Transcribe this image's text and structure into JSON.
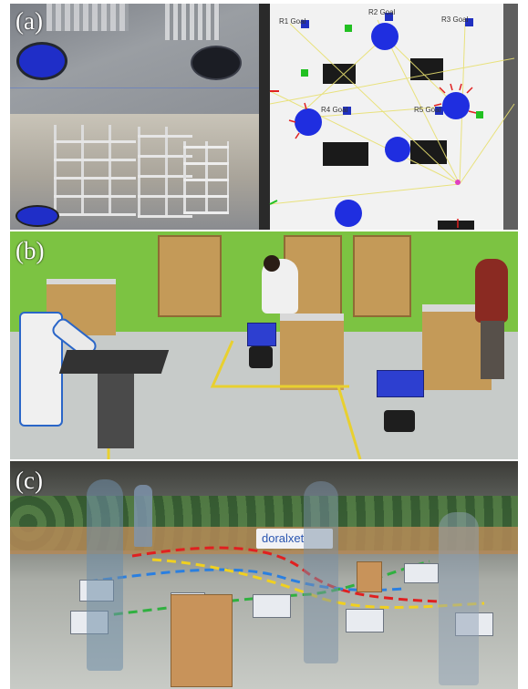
{
  "panels": {
    "a": {
      "label": "(a)"
    },
    "b": {
      "label": "(b)"
    },
    "c": {
      "label": "(c)"
    }
  },
  "map_labels": {
    "r1": "R1 Goal",
    "r2": "R2 Goal",
    "r3": "R3 Goal",
    "r4": "R4 Goal",
    "r5": "R5 Goal"
  },
  "logo_text": "doralxet",
  "colors": {
    "robot_blue": "#1f2ee0",
    "wall_green": "#7cc342",
    "floor_gray": "#bdbfbe",
    "path_red": "#e02020",
    "path_blue": "#2a7fe0",
    "path_yellow": "#f0d020",
    "path_green": "#30b040"
  }
}
